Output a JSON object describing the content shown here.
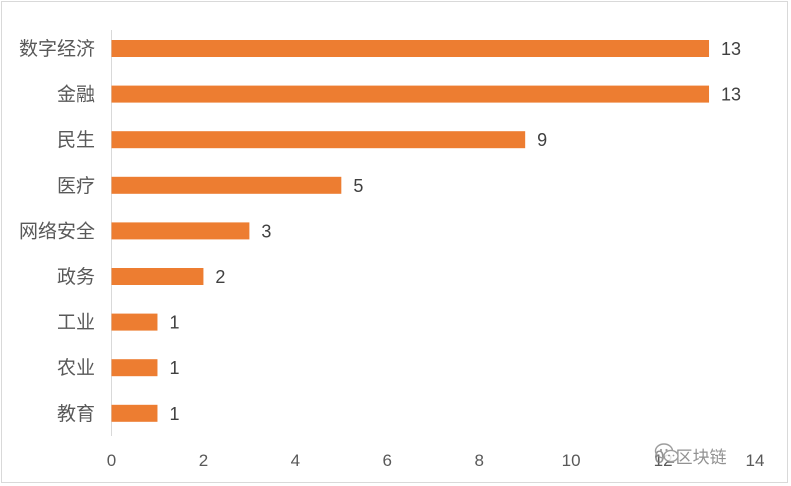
{
  "chart_data": {
    "type": "bar",
    "orientation": "horizontal",
    "categories": [
      "数字经济",
      "金融",
      "民生",
      "医疗",
      "网络安全",
      "政务",
      "工业",
      "农业",
      "教育"
    ],
    "values": [
      13,
      13,
      9,
      5,
      3,
      2,
      1,
      1,
      1
    ],
    "data_labels": [
      "13",
      "13",
      "9",
      "5",
      "3",
      "2",
      "1",
      "1",
      "1"
    ],
    "title": "",
    "xlabel": "",
    "ylabel": "",
    "xlim": [
      0,
      14
    ],
    "x_ticks": [
      "0",
      "2",
      "4",
      "6",
      "8",
      "10",
      "12",
      "14"
    ],
    "grid": false,
    "legend": "none",
    "bar_color": "#ED7D31"
  },
  "watermark": {
    "text": "01区块链",
    "icon": "wechat-icon"
  }
}
